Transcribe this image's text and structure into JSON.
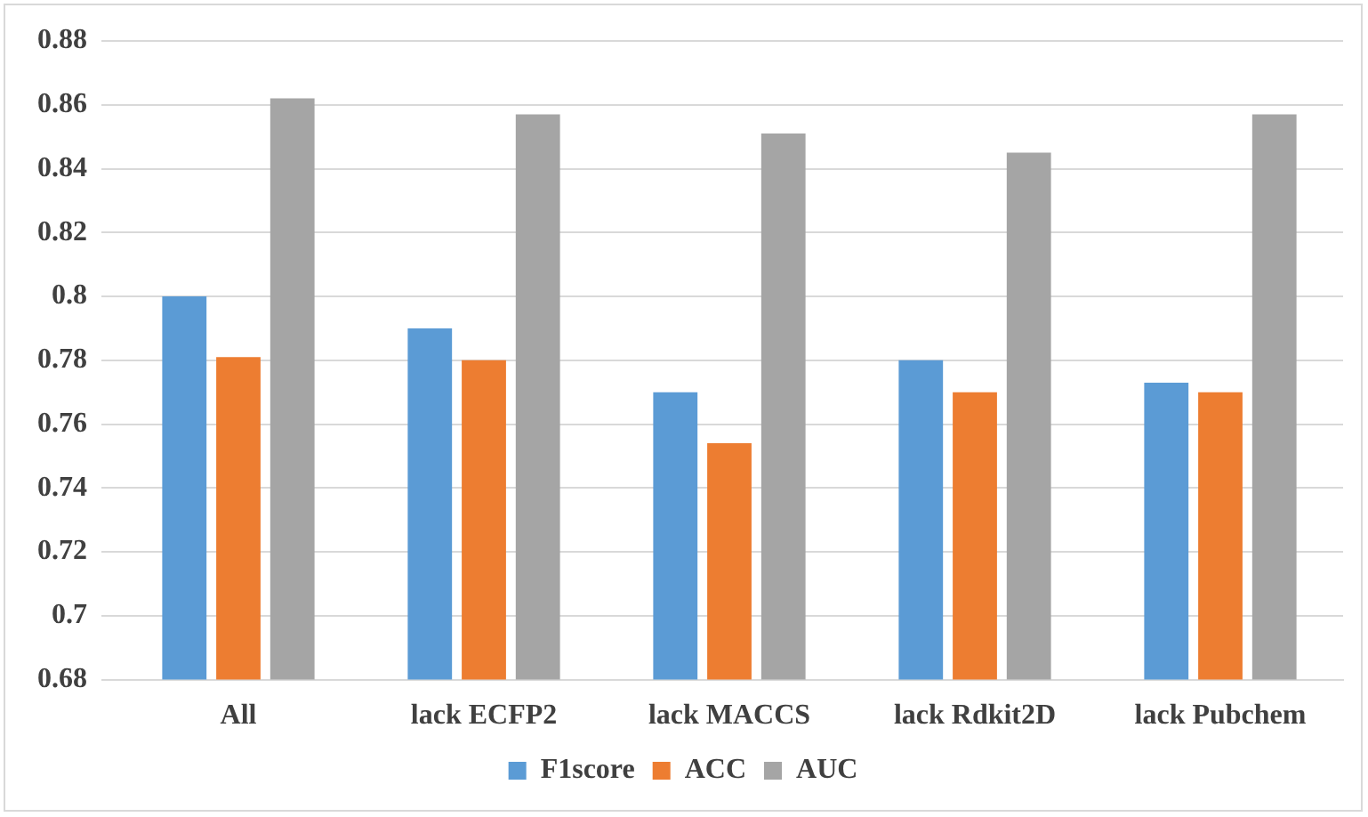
{
  "chart_data": {
    "type": "bar",
    "categories": [
      "All",
      "lack ECFP2",
      "lack MACCS",
      "lack Rdkit2D",
      "lack Pubchem"
    ],
    "series": [
      {
        "name": "F1score",
        "color": "#5b9bd5",
        "values": [
          0.8,
          0.79,
          0.77,
          0.78,
          0.773
        ]
      },
      {
        "name": "ACC",
        "color": "#ed7d31",
        "values": [
          0.781,
          0.78,
          0.754,
          0.77,
          0.77
        ]
      },
      {
        "name": "AUC",
        "color": "#a5a5a5",
        "values": [
          0.862,
          0.857,
          0.851,
          0.845,
          0.857
        ]
      }
    ],
    "ylim": [
      0.68,
      0.88
    ],
    "yticks": [
      0.68,
      0.7,
      0.72,
      0.74,
      0.76,
      0.78,
      0.8,
      0.82,
      0.84,
      0.86,
      0.88
    ],
    "grid": "y",
    "legend": "bottom"
  }
}
